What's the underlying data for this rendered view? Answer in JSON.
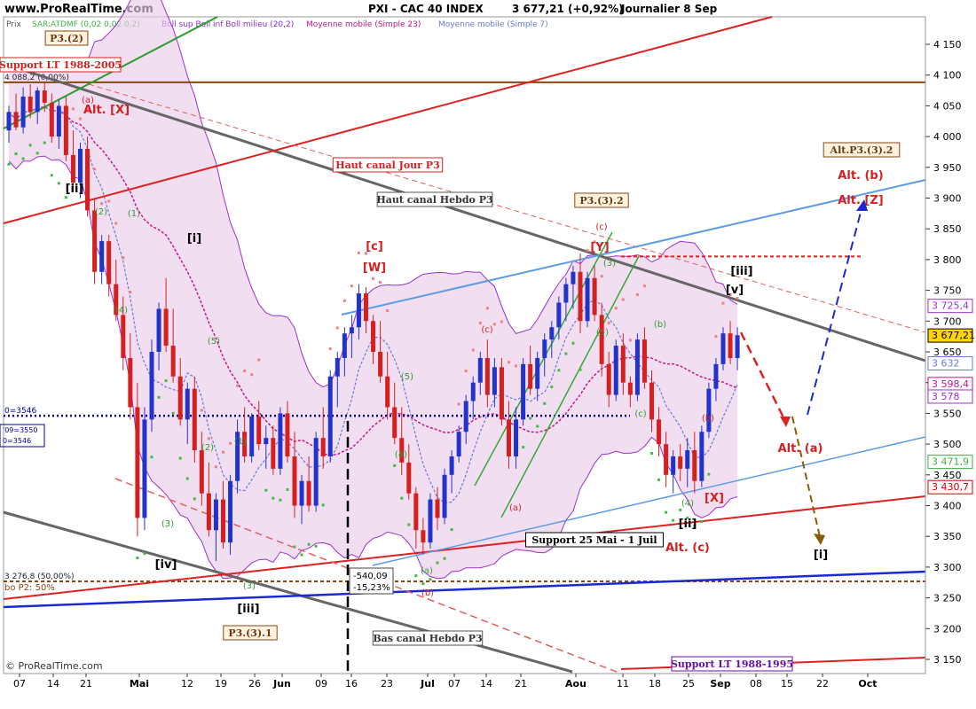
{
  "header": {
    "site": "www.ProRealTime.com",
    "title": "PXI - CAC 40 INDEX",
    "last": "3 677,21 (+0,92%)",
    "period": "Journalier  8 Sep",
    "copyright": "© ProRealTime.com",
    "prix": "Prix"
  },
  "legend": [
    {
      "text": "SAR:ATDMF (0,02 0,02 0,2)",
      "color": "#3cb043"
    },
    {
      "text": "Boll sup Boll inf Boll milieu (20,2)",
      "color": "#8a2be2"
    },
    {
      "text": "Moyenne mobile (Simple 23)",
      "color": "#c71585"
    },
    {
      "text": "Moyenne mobile (Simple 7)",
      "color": "#6a78d8"
    }
  ],
  "chart_data": {
    "type": "candlestick",
    "title": "PXI - CAC 40 INDEX",
    "last_value": 3677.21,
    "change_pct": 0.92,
    "ylim": [
      3125,
      4190
    ],
    "y_ticks": [
      "4 150",
      "4 100",
      "4 050",
      "4 000",
      "3 950",
      "3 900",
      "3 850",
      "3 800",
      "3 750",
      "3 700",
      "3 650",
      "3 600",
      "3 550",
      "3 500",
      "3 450",
      "3 400",
      "3 350",
      "3 300",
      "3 250",
      "3 200",
      "3 150"
    ],
    "x_ticks": [
      "07",
      "14",
      "21",
      "Mai",
      "12",
      "19",
      "26",
      "Jun",
      "09",
      "16",
      "23",
      "Jul",
      "07",
      "14",
      "21",
      "Aou",
      "11",
      "18",
      "25",
      "Sep",
      "08",
      "15",
      "22",
      "Oct"
    ],
    "price_tags": [
      {
        "label": "3 725,4",
        "value": 3725.4,
        "color": "#9932cc",
        "bg": "#ffffff"
      },
      {
        "label": "3 677,21",
        "value": 3677.21,
        "color": "#000000",
        "bg": "#ffd700"
      },
      {
        "label": "3 632",
        "value": 3632,
        "color": "#6a78d8",
        "bg": "#ffffff"
      },
      {
        "label": "3 598,4",
        "value": 3598.4,
        "color": "#c71585",
        "bg": "#ffffff"
      },
      {
        "label": "3 578",
        "value": 3578,
        "color": "#9932cc",
        "bg": "#ffffff"
      },
      {
        "label": "3 471,9",
        "value": 3471.9,
        "color": "#3cb043",
        "bg": "#ffffff"
      },
      {
        "label": "3 430,7",
        "value": 3430.7,
        "color": "#cc0000",
        "bg": "#ffffff"
      }
    ],
    "candles": [
      {
        "o": 4010,
        "h": 4050,
        "l": 3990,
        "c": 4040
      },
      {
        "o": 4040,
        "h": 4070,
        "l": 4010,
        "c": 4015
      },
      {
        "o": 4015,
        "h": 4080,
        "l": 4005,
        "c": 4065
      },
      {
        "o": 4065,
        "h": 4085,
        "l": 4030,
        "c": 4040
      },
      {
        "o": 4040,
        "h": 4080,
        "l": 4020,
        "c": 4075
      },
      {
        "o": 4075,
        "h": 4088,
        "l": 4040,
        "c": 4055
      },
      {
        "o": 4055,
        "h": 4070,
        "l": 3990,
        "c": 4000
      },
      {
        "o": 4000,
        "h": 4060,
        "l": 3980,
        "c": 4050
      },
      {
        "o": 4050,
        "h": 4065,
        "l": 3960,
        "c": 3970
      },
      {
        "o": 3970,
        "h": 4010,
        "l": 3910,
        "c": 3925
      },
      {
        "o": 3925,
        "h": 3990,
        "l": 3900,
        "c": 3980
      },
      {
        "o": 3980,
        "h": 4000,
        "l": 3870,
        "c": 3880
      },
      {
        "o": 3880,
        "h": 3900,
        "l": 3760,
        "c": 3780
      },
      {
        "o": 3780,
        "h": 3840,
        "l": 3760,
        "c": 3830
      },
      {
        "o": 3830,
        "h": 3840,
        "l": 3740,
        "c": 3760
      },
      {
        "o": 3760,
        "h": 3800,
        "l": 3700,
        "c": 3710
      },
      {
        "o": 3710,
        "h": 3740,
        "l": 3620,
        "c": 3640
      },
      {
        "o": 3640,
        "h": 3680,
        "l": 3540,
        "c": 3560
      },
      {
        "o": 3560,
        "h": 3600,
        "l": 3350,
        "c": 3380
      },
      {
        "o": 3380,
        "h": 3560,
        "l": 3360,
        "c": 3540
      },
      {
        "o": 3540,
        "h": 3670,
        "l": 3520,
        "c": 3650
      },
      {
        "o": 3650,
        "h": 3730,
        "l": 3620,
        "c": 3720
      },
      {
        "o": 3720,
        "h": 3770,
        "l": 3650,
        "c": 3660
      },
      {
        "o": 3660,
        "h": 3720,
        "l": 3600,
        "c": 3610
      },
      {
        "o": 3610,
        "h": 3640,
        "l": 3530,
        "c": 3540
      },
      {
        "o": 3540,
        "h": 3600,
        "l": 3500,
        "c": 3590
      },
      {
        "o": 3590,
        "h": 3610,
        "l": 3470,
        "c": 3490
      },
      {
        "o": 3490,
        "h": 3520,
        "l": 3400,
        "c": 3420
      },
      {
        "o": 3420,
        "h": 3470,
        "l": 3350,
        "c": 3360
      },
      {
        "o": 3360,
        "h": 3420,
        "l": 3310,
        "c": 3410
      },
      {
        "o": 3410,
        "h": 3440,
        "l": 3330,
        "c": 3340
      },
      {
        "o": 3340,
        "h": 3450,
        "l": 3320,
        "c": 3440
      },
      {
        "o": 3440,
        "h": 3540,
        "l": 3420,
        "c": 3520
      },
      {
        "o": 3520,
        "h": 3560,
        "l": 3470,
        "c": 3480
      },
      {
        "o": 3480,
        "h": 3550,
        "l": 3470,
        "c": 3545
      },
      {
        "o": 3545,
        "h": 3570,
        "l": 3490,
        "c": 3500
      },
      {
        "o": 3500,
        "h": 3530,
        "l": 3460,
        "c": 3510
      },
      {
        "o": 3510,
        "h": 3530,
        "l": 3450,
        "c": 3460
      },
      {
        "o": 3460,
        "h": 3560,
        "l": 3450,
        "c": 3550
      },
      {
        "o": 3550,
        "h": 3570,
        "l": 3470,
        "c": 3480
      },
      {
        "o": 3480,
        "h": 3520,
        "l": 3380,
        "c": 3400
      },
      {
        "o": 3400,
        "h": 3450,
        "l": 3370,
        "c": 3440
      },
      {
        "o": 3440,
        "h": 3480,
        "l": 3390,
        "c": 3400
      },
      {
        "o": 3400,
        "h": 3520,
        "l": 3390,
        "c": 3510
      },
      {
        "o": 3510,
        "h": 3560,
        "l": 3460,
        "c": 3480
      },
      {
        "o": 3480,
        "h": 3620,
        "l": 3470,
        "c": 3610
      },
      {
        "o": 3610,
        "h": 3650,
        "l": 3560,
        "c": 3640
      },
      {
        "o": 3640,
        "h": 3690,
        "l": 3610,
        "c": 3680
      },
      {
        "o": 3680,
        "h": 3710,
        "l": 3640,
        "c": 3690
      },
      {
        "o": 3690,
        "h": 3760,
        "l": 3670,
        "c": 3745
      },
      {
        "o": 3745,
        "h": 3755,
        "l": 3680,
        "c": 3700
      },
      {
        "o": 3700,
        "h": 3710,
        "l": 3630,
        "c": 3650
      },
      {
        "o": 3650,
        "h": 3700,
        "l": 3600,
        "c": 3610
      },
      {
        "o": 3610,
        "h": 3650,
        "l": 3540,
        "c": 3560
      },
      {
        "o": 3560,
        "h": 3600,
        "l": 3500,
        "c": 3510
      },
      {
        "o": 3510,
        "h": 3560,
        "l": 3450,
        "c": 3470
      },
      {
        "o": 3470,
        "h": 3500,
        "l": 3410,
        "c": 3420
      },
      {
        "o": 3420,
        "h": 3430,
        "l": 3330,
        "c": 3360
      },
      {
        "o": 3360,
        "h": 3380,
        "l": 3320,
        "c": 3340
      },
      {
        "o": 3340,
        "h": 3420,
        "l": 3330,
        "c": 3410
      },
      {
        "o": 3410,
        "h": 3430,
        "l": 3360,
        "c": 3380
      },
      {
        "o": 3380,
        "h": 3460,
        "l": 3370,
        "c": 3450
      },
      {
        "o": 3450,
        "h": 3490,
        "l": 3420,
        "c": 3480
      },
      {
        "o": 3480,
        "h": 3530,
        "l": 3470,
        "c": 3520
      },
      {
        "o": 3520,
        "h": 3580,
        "l": 3500,
        "c": 3570
      },
      {
        "o": 3570,
        "h": 3610,
        "l": 3540,
        "c": 3600
      },
      {
        "o": 3600,
        "h": 3650,
        "l": 3580,
        "c": 3640
      },
      {
        "o": 3640,
        "h": 3670,
        "l": 3560,
        "c": 3580
      },
      {
        "o": 3580,
        "h": 3640,
        "l": 3560,
        "c": 3625
      },
      {
        "o": 3625,
        "h": 3640,
        "l": 3530,
        "c": 3540
      },
      {
        "o": 3540,
        "h": 3570,
        "l": 3460,
        "c": 3480
      },
      {
        "o": 3480,
        "h": 3560,
        "l": 3460,
        "c": 3540
      },
      {
        "o": 3540,
        "h": 3640,
        "l": 3530,
        "c": 3630
      },
      {
        "o": 3630,
        "h": 3660,
        "l": 3580,
        "c": 3590
      },
      {
        "o": 3590,
        "h": 3650,
        "l": 3570,
        "c": 3640
      },
      {
        "o": 3640,
        "h": 3680,
        "l": 3610,
        "c": 3670
      },
      {
        "o": 3670,
        "h": 3700,
        "l": 3640,
        "c": 3690
      },
      {
        "o": 3690,
        "h": 3740,
        "l": 3670,
        "c": 3730
      },
      {
        "o": 3730,
        "h": 3770,
        "l": 3700,
        "c": 3760
      },
      {
        "o": 3760,
        "h": 3790,
        "l": 3720,
        "c": 3780
      },
      {
        "o": 3780,
        "h": 3810,
        "l": 3680,
        "c": 3700
      },
      {
        "o": 3700,
        "h": 3780,
        "l": 3690,
        "c": 3770
      },
      {
        "o": 3770,
        "h": 3790,
        "l": 3700,
        "c": 3710
      },
      {
        "o": 3710,
        "h": 3730,
        "l": 3610,
        "c": 3630
      },
      {
        "o": 3630,
        "h": 3650,
        "l": 3560,
        "c": 3580
      },
      {
        "o": 3580,
        "h": 3670,
        "l": 3570,
        "c": 3660
      },
      {
        "o": 3660,
        "h": 3680,
        "l": 3580,
        "c": 3600
      },
      {
        "o": 3600,
        "h": 3610,
        "l": 3560,
        "c": 3580
      },
      {
        "o": 3580,
        "h": 3680,
        "l": 3570,
        "c": 3670
      },
      {
        "o": 3670,
        "h": 3690,
        "l": 3590,
        "c": 3600
      },
      {
        "o": 3600,
        "h": 3620,
        "l": 3520,
        "c": 3540
      },
      {
        "o": 3540,
        "h": 3560,
        "l": 3480,
        "c": 3500
      },
      {
        "o": 3500,
        "h": 3520,
        "l": 3430,
        "c": 3450
      },
      {
        "o": 3450,
        "h": 3490,
        "l": 3420,
        "c": 3480
      },
      {
        "o": 3480,
        "h": 3500,
        "l": 3440,
        "c": 3460
      },
      {
        "o": 3460,
        "h": 3510,
        "l": 3430,
        "c": 3490
      },
      {
        "o": 3490,
        "h": 3520,
        "l": 3420,
        "c": 3440
      },
      {
        "o": 3440,
        "h": 3530,
        "l": 3430,
        "c": 3520
      },
      {
        "o": 3520,
        "h": 3600,
        "l": 3510,
        "c": 3590
      },
      {
        "o": 3590,
        "h": 3640,
        "l": 3570,
        "c": 3630
      },
      {
        "o": 3630,
        "h": 3690,
        "l": 3620,
        "c": 3680
      },
      {
        "o": 3680,
        "h": 3700,
        "l": 3630,
        "c": 3640
      },
      {
        "o": 3640,
        "h": 3690,
        "l": 3620,
        "c": 3677
      }
    ],
    "horizontal_lines": [
      {
        "value": 4088.2,
        "label": "4 088,2 (0,00%)",
        "color": "#8b4513"
      },
      {
        "value": 3276.8,
        "label": "3 276,8 (50,00%)",
        "color": "#8b4513",
        "dashed": true
      },
      {
        "value": 3546,
        "label": "0=3546",
        "color": "#00008b",
        "dashed": true
      },
      {
        "value": 3550,
        "label": "'09=3550",
        "color": "#00008b"
      },
      {
        "value": 3805,
        "label": "",
        "color": "#dd2222",
        "dashed": true
      }
    ],
    "annotations": {
      "measure": [
        "-540,09",
        "-15,23%"
      ],
      "fibo_label": "bo P2: 50%"
    }
  },
  "labels": [
    {
      "text": "P3.(2)",
      "style": "box-brown"
    },
    {
      "text": "P3.(3).1",
      "style": "box-brown"
    },
    {
      "text": "P3.(3).2",
      "style": "box-brown"
    },
    {
      "text": "Alt.P3.(3).2",
      "style": "box-brown"
    },
    {
      "text": "Haut canal Jour P3",
      "style": "box-red"
    },
    {
      "text": "Haut canal Hebdo P3",
      "style": "box-gray"
    },
    {
      "text": "Bas canal Hebdo P3",
      "style": "box-gray"
    },
    {
      "text": "Support 25 Mai - 1 Juil",
      "style": "box-black"
    },
    {
      "text": "Support LT 1988-1995",
      "style": "box-purple"
    },
    {
      "text": "Support LT 1988-2005",
      "style": "box-red"
    },
    {
      "text": "[c]",
      "style": "red"
    },
    {
      "text": "[W]",
      "style": "red"
    },
    {
      "text": "(c)",
      "style": "red"
    },
    {
      "text": "[Y]",
      "style": "red"
    },
    {
      "text": "(c)",
      "style": "red"
    },
    {
      "text": "(a)",
      "style": "red"
    },
    {
      "text": "(b)",
      "style": "red"
    },
    {
      "text": "[X]",
      "style": "red"
    },
    {
      "text": "(b)",
      "style": "red"
    },
    {
      "text": "(a)",
      "style": "red"
    },
    {
      "text": "[ii]",
      "style": "black"
    },
    {
      "text": "[i]",
      "style": "black"
    },
    {
      "text": "[iv]",
      "style": "black"
    },
    {
      "text": "[iii]",
      "style": "black"
    },
    {
      "text": "[v]",
      "style": "black"
    },
    {
      "text": "[ii]",
      "style": "black"
    },
    {
      "text": "[i]",
      "style": "black"
    },
    {
      "text": "[iii]",
      "style": "black"
    },
    {
      "text": "Alt. (a)",
      "style": "red"
    },
    {
      "text": "Alt. (b)",
      "style": "red"
    },
    {
      "text": "Alt. [Z]",
      "style": "red"
    },
    {
      "text": "Alt. (c)",
      "style": "red"
    },
    {
      "text": "Alt. [X]",
      "style": "red"
    },
    {
      "text": "(2)",
      "style": "green"
    },
    {
      "text": "(1)",
      "style": "green"
    },
    {
      "text": "(4)",
      "style": "green"
    },
    {
      "text": "(3)",
      "style": "green"
    },
    {
      "text": "(5)",
      "style": "green"
    },
    {
      "text": "(2)",
      "style": "green"
    },
    {
      "text": "(1)",
      "style": "green"
    },
    {
      "text": "(3)",
      "style": "green"
    },
    {
      "text": "(4)",
      "style": "green"
    },
    {
      "text": "(5)",
      "style": "green"
    },
    {
      "text": "(a)",
      "style": "green"
    },
    {
      "text": "(b)",
      "style": "green"
    },
    {
      "text": "(c)",
      "style": "green"
    },
    {
      "text": "(4)",
      "style": "green"
    },
    {
      "text": "(3)",
      "style": "green"
    },
    {
      "text": "(5)",
      "style": "green"
    },
    {
      "text": "(2)",
      "style": "green"
    },
    {
      "text": "(1)",
      "style": "green"
    }
  ]
}
